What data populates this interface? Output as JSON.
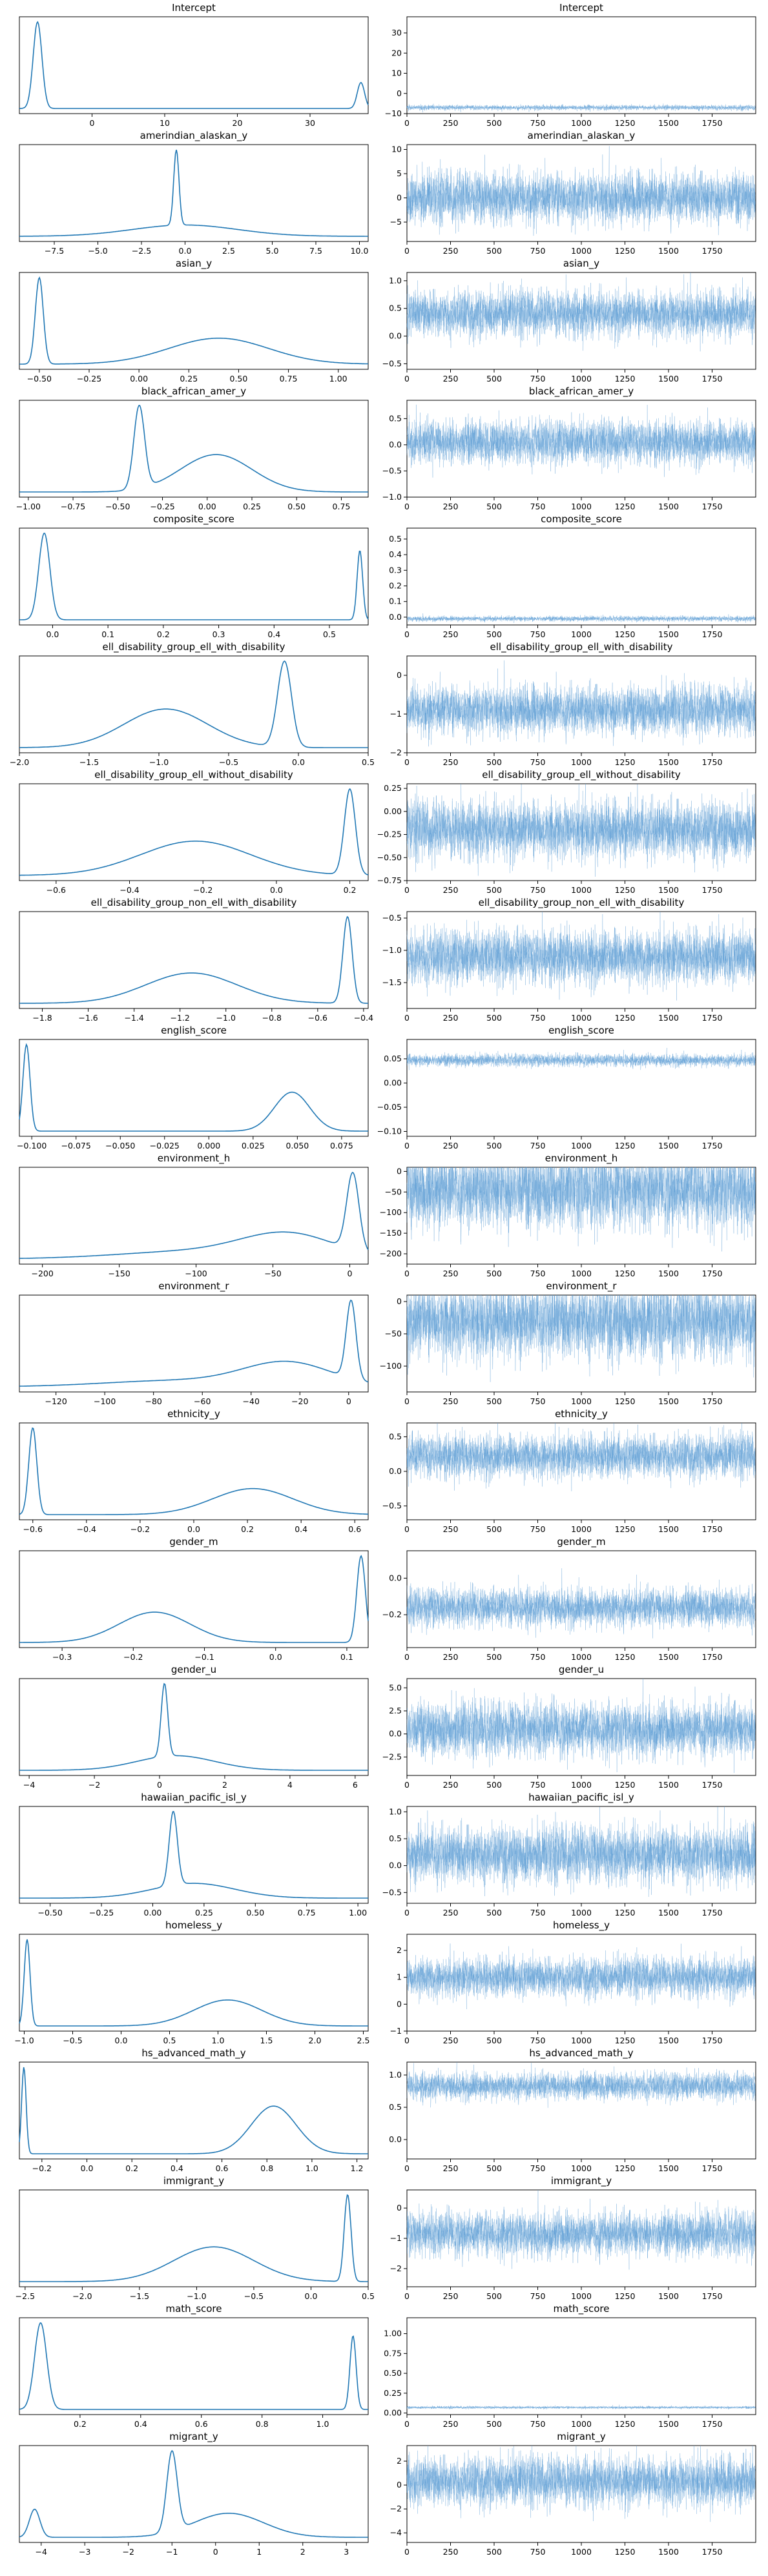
{
  "figure": {
    "description_free": true
  },
  "chart_data": [
    {
      "title": "Intercept",
      "kde": {
        "type": "line",
        "x_ticks": [
          0,
          10,
          20,
          30
        ],
        "xlim": [
          -10,
          38
        ],
        "peaks": [
          {
            "x": -7.5,
            "h": 1.0,
            "w": 0.6
          },
          {
            "x": 37,
            "h": 0.3,
            "w": 0.5
          }
        ]
      },
      "trace": {
        "type": "line",
        "y_ticks": [
          -10,
          0,
          10,
          20,
          30
        ],
        "ylim": [
          -10,
          38
        ],
        "mean": -7,
        "spread": 0.6
      }
    },
    {
      "title": "amerindian_alaskan_y",
      "kde": {
        "type": "line",
        "x_ticks": [
          -7.5,
          -5.0,
          -2.5,
          0.0,
          2.5,
          5.0,
          7.5,
          10.0
        ],
        "xlim": [
          -9.5,
          10.5
        ],
        "peaks": [
          {
            "x": -0.5,
            "h": 1.0,
            "w": 0.15
          },
          {
            "x": 0,
            "h": 0.15,
            "w": 3.0
          }
        ]
      },
      "trace": {
        "type": "line",
        "y_ticks": [
          -5,
          0,
          5,
          10
        ],
        "ylim": [
          -9,
          11
        ],
        "mean": 0,
        "spread": 2.5
      }
    },
    {
      "title": "asian_y",
      "kde": {
        "type": "line",
        "x_ticks": [
          -0.5,
          -0.25,
          0.0,
          0.25,
          0.5,
          0.75,
          1.0
        ],
        "xlim": [
          -0.6,
          1.15
        ],
        "peaks": [
          {
            "x": -0.5,
            "h": 1.0,
            "w": 0.02
          },
          {
            "x": 0.4,
            "h": 0.3,
            "w": 0.25
          }
        ]
      },
      "trace": {
        "type": "line",
        "y_ticks": [
          -0.5,
          0.0,
          0.5,
          1.0
        ],
        "ylim": [
          -0.6,
          1.15
        ],
        "mean": 0.4,
        "spread": 0.2
      }
    },
    {
      "title": "black_african_amer_y",
      "kde": {
        "type": "line",
        "x_ticks": [
          -1.0,
          -0.75,
          -0.5,
          -0.25,
          0.0,
          0.25,
          0.5,
          0.75
        ],
        "xlim": [
          -1.05,
          0.9
        ],
        "peaks": [
          {
            "x": -0.38,
            "h": 1.0,
            "w": 0.03
          },
          {
            "x": 0.05,
            "h": 0.45,
            "w": 0.2
          }
        ]
      },
      "trace": {
        "type": "line",
        "y_ticks": [
          -1.0,
          -0.5,
          0.0,
          0.5
        ],
        "ylim": [
          -1.0,
          0.85
        ],
        "mean": 0.05,
        "spread": 0.2
      }
    },
    {
      "title": "composite_score",
      "kde": {
        "type": "line",
        "x_ticks": [
          0.0,
          0.1,
          0.2,
          0.3,
          0.4,
          0.5
        ],
        "xlim": [
          -0.06,
          0.57
        ],
        "peaks": [
          {
            "x": -0.015,
            "h": 1.0,
            "w": 0.01
          },
          {
            "x": 0.555,
            "h": 0.8,
            "w": 0.005
          }
        ]
      },
      "trace": {
        "type": "line",
        "y_ticks": [
          0.0,
          0.1,
          0.2,
          0.3,
          0.4,
          0.5
        ],
        "ylim": [
          -0.05,
          0.57
        ],
        "mean": -0.01,
        "spread": 0.008
      }
    },
    {
      "title": "ell_disability_group_ell_with_disability",
      "kde": {
        "type": "line",
        "x_ticks": [
          -2.0,
          -1.5,
          -1.0,
          -0.5,
          0.0,
          0.5
        ],
        "xlim": [
          -2.0,
          0.5
        ],
        "peaks": [
          {
            "x": -0.1,
            "h": 1.0,
            "w": 0.05
          },
          {
            "x": -0.95,
            "h": 0.45,
            "w": 0.3
          }
        ]
      },
      "trace": {
        "type": "line",
        "y_ticks": [
          -2,
          -1,
          0
        ],
        "ylim": [
          -2,
          0.5
        ],
        "mean": -0.9,
        "spread": 0.3
      }
    },
    {
      "title": "ell_disability_group_ell_without_disability",
      "kde": {
        "type": "line",
        "x_ticks": [
          -0.6,
          -0.4,
          -0.2,
          0.0,
          0.2
        ],
        "xlim": [
          -0.7,
          0.25
        ],
        "peaks": [
          {
            "x": 0.2,
            "h": 1.0,
            "w": 0.015
          },
          {
            "x": -0.22,
            "h": 0.4,
            "w": 0.15
          }
        ]
      },
      "trace": {
        "type": "line",
        "y_ticks": [
          -0.75,
          -0.5,
          -0.25,
          0.0,
          0.25
        ],
        "ylim": [
          -0.75,
          0.3
        ],
        "mean": -0.2,
        "spread": 0.15
      }
    },
    {
      "title": "ell_disability_group_non_ell_with_disability",
      "kde": {
        "type": "line",
        "x_ticks": [
          -1.8,
          -1.6,
          -1.4,
          -1.2,
          -1.0,
          -0.8,
          -0.6,
          -0.4
        ],
        "xlim": [
          -1.9,
          -0.38
        ],
        "peaks": [
          {
            "x": -0.47,
            "h": 1.0,
            "w": 0.02
          },
          {
            "x": -1.15,
            "h": 0.35,
            "w": 0.2
          }
        ]
      },
      "trace": {
        "type": "line",
        "y_ticks": [
          -1.5,
          -1.0,
          -0.5
        ],
        "ylim": [
          -1.9,
          -0.4
        ],
        "mean": -1.1,
        "spread": 0.2
      }
    },
    {
      "title": "english_score",
      "kde": {
        "type": "line",
        "x_ticks": [
          -0.1,
          -0.075,
          -0.05,
          -0.025,
          0.0,
          0.025,
          0.05,
          0.075
        ],
        "xlim": [
          -0.107,
          0.09
        ],
        "peaks": [
          {
            "x": -0.103,
            "h": 1.0,
            "w": 0.002
          },
          {
            "x": 0.047,
            "h": 0.45,
            "w": 0.01
          }
        ]
      },
      "trace": {
        "type": "line",
        "y_ticks": [
          -0.1,
          -0.05,
          0.0,
          0.05
        ],
        "ylim": [
          -0.11,
          0.09
        ],
        "mean": 0.047,
        "spread": 0.006
      }
    },
    {
      "title": "environment_h",
      "kde": {
        "type": "line",
        "x_ticks": [
          -200,
          -150,
          -100,
          -50,
          0
        ],
        "xlim": [
          -215,
          12
        ],
        "peaks": [
          {
            "x": 2,
            "h": 1.0,
            "w": 4
          },
          {
            "x": -40,
            "h": 0.3,
            "w": 30
          },
          {
            "x": -100,
            "h": 0.1,
            "w": 50
          }
        ]
      },
      "trace": {
        "type": "line",
        "y_ticks": [
          -200,
          -150,
          -100,
          -50,
          0
        ],
        "ylim": [
          -225,
          10
        ],
        "mean": -45,
        "spread": 45
      }
    },
    {
      "title": "environment_r",
      "kde": {
        "type": "line",
        "x_ticks": [
          -120,
          -100,
          -80,
          -60,
          -40,
          -20,
          0
        ],
        "xlim": [
          -135,
          8
        ],
        "peaks": [
          {
            "x": 1,
            "h": 1.0,
            "w": 2
          },
          {
            "x": -25,
            "h": 0.3,
            "w": 18
          },
          {
            "x": -70,
            "h": 0.08,
            "w": 30
          }
        ]
      },
      "trace": {
        "type": "line",
        "y_ticks": [
          -100,
          -50,
          0
        ],
        "ylim": [
          -140,
          10
        ],
        "mean": -30,
        "spread": 28
      }
    },
    {
      "title": "ethnicity_y",
      "kde": {
        "type": "line",
        "x_ticks": [
          -0.6,
          -0.4,
          -0.2,
          0.0,
          0.2,
          0.4,
          0.6
        ],
        "xlim": [
          -0.65,
          0.65
        ],
        "peaks": [
          {
            "x": -0.6,
            "h": 1.0,
            "w": 0.015
          },
          {
            "x": 0.22,
            "h": 0.3,
            "w": 0.15
          }
        ]
      },
      "trace": {
        "type": "line",
        "y_ticks": [
          -0.5,
          0.0,
          0.5
        ],
        "ylim": [
          -0.7,
          0.7
        ],
        "mean": 0.22,
        "spread": 0.15
      }
    },
    {
      "title": "gender_m",
      "kde": {
        "type": "line",
        "x_ticks": [
          -0.3,
          -0.2,
          -0.1,
          0.0,
          0.1
        ],
        "xlim": [
          -0.36,
          0.13
        ],
        "peaks": [
          {
            "x": 0.12,
            "h": 1.0,
            "w": 0.006
          },
          {
            "x": -0.17,
            "h": 0.35,
            "w": 0.05
          }
        ]
      },
      "trace": {
        "type": "line",
        "y_ticks": [
          -0.2,
          0.0
        ],
        "ylim": [
          -0.38,
          0.15
        ],
        "mean": -0.16,
        "spread": 0.05
      }
    },
    {
      "title": "gender_u",
      "kde": {
        "type": "line",
        "x_ticks": [
          -4,
          -2,
          0,
          2,
          4,
          6
        ],
        "xlim": [
          -4.3,
          6.4
        ],
        "peaks": [
          {
            "x": 0.15,
            "h": 1.0,
            "w": 0.1
          },
          {
            "x": 0.5,
            "h": 0.2,
            "w": 1.2
          }
        ]
      },
      "trace": {
        "type": "line",
        "y_ticks": [
          -2.5,
          0.0,
          2.5,
          5.0
        ],
        "ylim": [
          -4.5,
          6
        ],
        "mean": 0.5,
        "spread": 1.4
      }
    },
    {
      "title": "hawaiian_pacific_isl_y",
      "kde": {
        "type": "line",
        "x_ticks": [
          -0.5,
          -0.25,
          0.0,
          0.25,
          0.5,
          0.75,
          1.0
        ],
        "xlim": [
          -0.65,
          1.05
        ],
        "peaks": [
          {
            "x": 0.1,
            "h": 1.0,
            "w": 0.02
          },
          {
            "x": 0.2,
            "h": 0.2,
            "w": 0.2
          }
        ]
      },
      "trace": {
        "type": "line",
        "y_ticks": [
          -0.5,
          0.0,
          0.5,
          1.0
        ],
        "ylim": [
          -0.7,
          1.1
        ],
        "mean": 0.2,
        "spread": 0.25
      }
    },
    {
      "title": "homeless_y",
      "kde": {
        "type": "line",
        "x_ticks": [
          -1.0,
          -0.5,
          0.0,
          0.5,
          1.0,
          1.5,
          2.0,
          2.5
        ],
        "xlim": [
          -1.05,
          2.55
        ],
        "peaks": [
          {
            "x": -0.97,
            "h": 1.0,
            "w": 0.03
          },
          {
            "x": 1.1,
            "h": 0.3,
            "w": 0.35
          }
        ]
      },
      "trace": {
        "type": "line",
        "y_ticks": [
          -1,
          0,
          1,
          2
        ],
        "ylim": [
          -1,
          2.6
        ],
        "mean": 1.0,
        "spread": 0.35
      }
    },
    {
      "title": "hs_advanced_math_y",
      "kde": {
        "type": "line",
        "x_ticks": [
          -0.2,
          0.0,
          0.2,
          0.4,
          0.6,
          0.8,
          1.0,
          1.2
        ],
        "xlim": [
          -0.3,
          1.25
        ],
        "peaks": [
          {
            "x": -0.28,
            "h": 1.0,
            "w": 0.01
          },
          {
            "x": 0.83,
            "h": 0.55,
            "w": 0.1
          }
        ]
      },
      "trace": {
        "type": "line",
        "y_ticks": [
          0.0,
          0.5,
          1.0
        ],
        "ylim": [
          -0.3,
          1.2
        ],
        "mean": 0.83,
        "spread": 0.1
      }
    },
    {
      "title": "immigrant_y",
      "kde": {
        "type": "line",
        "x_ticks": [
          -2.5,
          -2.0,
          -1.5,
          -1.0,
          -0.5,
          0.0,
          0.5
        ],
        "xlim": [
          -2.55,
          0.5
        ],
        "peaks": [
          {
            "x": 0.32,
            "h": 1.0,
            "w": 0.03
          },
          {
            "x": -0.85,
            "h": 0.4,
            "w": 0.35
          }
        ]
      },
      "trace": {
        "type": "line",
        "y_ticks": [
          -2,
          -1,
          0
        ],
        "ylim": [
          -2.6,
          0.6
        ],
        "mean": -0.85,
        "spread": 0.35
      }
    },
    {
      "title": "math_score",
      "kde": {
        "type": "line",
        "x_ticks": [
          0.2,
          0.4,
          0.6,
          0.8,
          1.0
        ],
        "xlim": [
          0.0,
          1.15
        ],
        "peaks": [
          {
            "x": 0.07,
            "h": 1.0,
            "w": 0.02
          },
          {
            "x": 1.1,
            "h": 0.85,
            "w": 0.01
          }
        ]
      },
      "trace": {
        "type": "line",
        "y_ticks": [
          0.0,
          0.25,
          0.5,
          0.75,
          1.0
        ],
        "ylim": [
          -0.02,
          1.2
        ],
        "mean": 0.07,
        "spread": 0.008
      }
    },
    {
      "title": "migrant_y",
      "kde": {
        "type": "line",
        "x_ticks": [
          -4,
          -3,
          -2,
          -1,
          0,
          1,
          2,
          3
        ],
        "xlim": [
          -4.5,
          3.5
        ],
        "peaks": [
          {
            "x": -4.15,
            "h": 0.35,
            "w": 0.12
          },
          {
            "x": -1.0,
            "h": 1.0,
            "w": 0.12
          },
          {
            "x": 0.3,
            "h": 0.3,
            "w": 0.8
          }
        ]
      },
      "trace": {
        "type": "line",
        "y_ticks": [
          -4,
          -2,
          0,
          2
        ],
        "ylim": [
          -4.8,
          3.3
        ],
        "mean": 0.3,
        "spread": 1.0
      }
    }
  ],
  "trace_x_ticks": [
    0,
    250,
    500,
    750,
    1000,
    1250,
    1500,
    1750
  ],
  "trace_xlim": [
    0,
    2000
  ],
  "colors": {
    "line": "#1f77b4",
    "trace": "#5a9bd4",
    "axis": "#000000"
  }
}
